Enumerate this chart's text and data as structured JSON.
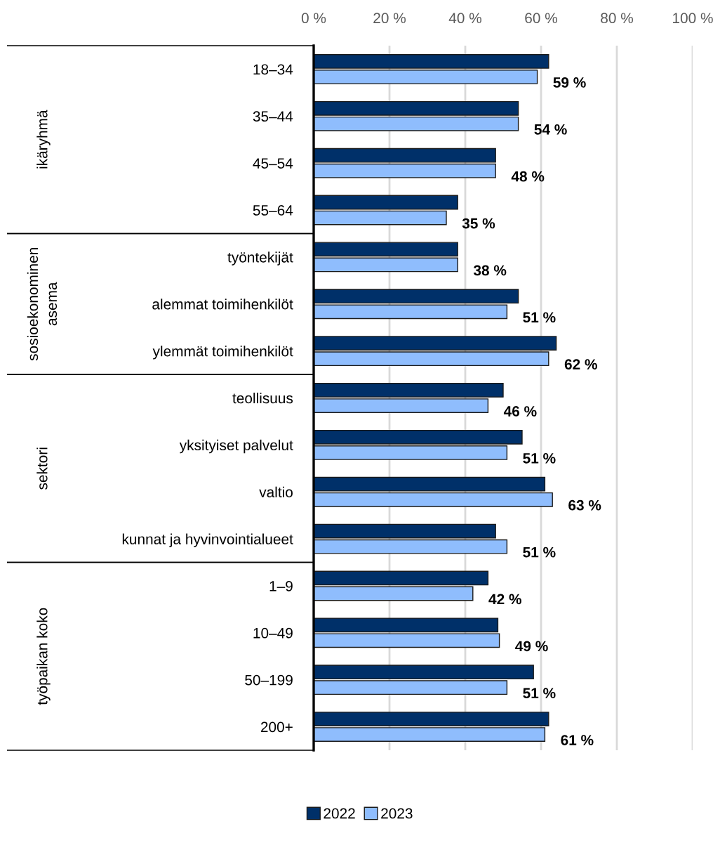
{
  "chart_data": {
    "type": "bar",
    "orientation": "horizontal",
    "categories": [
      "18–34",
      "35–44",
      "45–54",
      "55–64",
      "työntekijät",
      "alemmat toimihenkilöt",
      "ylemmät toimihenkilöt",
      "teollisuus",
      "yksityiset palvelut",
      "valtio",
      "kunnat ja hyvinvointialueet",
      "1–9",
      "10–49",
      "50–199",
      "200+"
    ],
    "series": [
      {
        "name": "2022",
        "color": "#003069",
        "values": [
          62,
          54,
          48,
          38,
          38,
          54,
          64,
          50,
          55,
          61,
          48,
          46,
          48.6,
          58,
          62
        ]
      },
      {
        "name": "2023",
        "color": "#8fbdfd",
        "values": [
          59,
          54,
          48,
          35,
          38,
          51,
          62,
          46,
          51,
          63,
          51,
          42,
          49,
          51,
          61
        ],
        "value_labels": [
          "59 %",
          "54 %",
          "48 %",
          "35 %",
          "38 %",
          "51 %",
          "62 %",
          "46 %",
          "51 %",
          "63 %",
          "51 %",
          "42 %",
          "49 %",
          "51 %",
          "61 %"
        ]
      }
    ],
    "xlim": [
      0,
      100
    ],
    "xticks": [
      {
        "value": 0,
        "label": "0 %"
      },
      {
        "value": 20,
        "label": "20 %"
      },
      {
        "value": 40,
        "label": "40 %"
      },
      {
        "value": 60,
        "label": "60 %"
      },
      {
        "value": 80,
        "label": "80 %"
      },
      {
        "value": 100,
        "label": "100 %"
      }
    ],
    "grid": "x",
    "legend": "bottom",
    "annotations": [
      "ikäryhmä",
      "sosioekonominen\nasema",
      "sektori",
      "työpaikan koko"
    ]
  }
}
